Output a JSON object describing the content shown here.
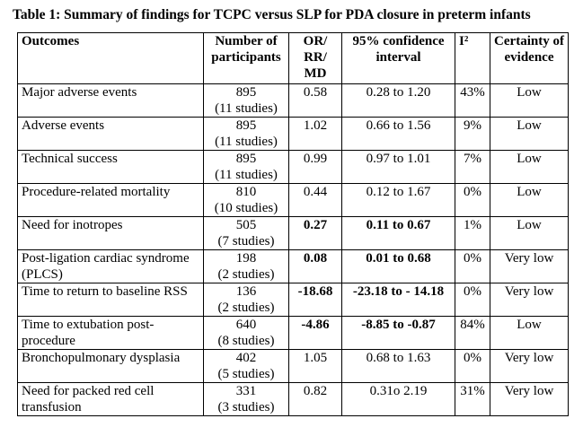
{
  "caption": "Table 1: Summary of findings for TCPC versus SLP for PDA closure in preterm infants",
  "headers": {
    "outcomes": "Outcomes",
    "participants": "Number of participants",
    "effect": "OR/ RR/ MD",
    "ci": "95% confidence interval",
    "i2": "I²",
    "certainty": "Certainty of evidence"
  },
  "rows": [
    {
      "outcome": "Major adverse events",
      "n": "895",
      "studies": "(11 studies)",
      "effect": "0.58",
      "ci": "0.28 to 1.20",
      "i2": "43%",
      "certainty": "Low"
    },
    {
      "outcome": "Adverse events",
      "n": "895",
      "studies": "(11 studies)",
      "effect": "1.02",
      "ci": "0.66 to 1.56",
      "i2": "9%",
      "certainty": "Low"
    },
    {
      "outcome": "Technical success",
      "n": "895",
      "studies": "(11 studies)",
      "effect": "0.99",
      "ci": "0.97 to 1.01",
      "i2": "7%",
      "certainty": "Low"
    },
    {
      "outcome": "Procedure-related mortality",
      "n": "810",
      "studies": "(10 studies)",
      "effect": "0.44",
      "ci": "0.12 to 1.67",
      "i2": "0%",
      "certainty": "Low"
    },
    {
      "outcome": "Need for inotropes",
      "n": "505",
      "studies": "(7 studies)",
      "effect": "0.27",
      "ci": "0.11 to 0.67",
      "i2": "1%",
      "certainty": "Low"
    },
    {
      "outcome": "Post-ligation cardiac syndrome (PLCS)",
      "n": "198",
      "studies": "(2 studies)",
      "effect": "0.08",
      "ci": "0.01 to 0.68",
      "i2": "0%",
      "certainty": "Very low"
    },
    {
      "outcome": "Time to return to baseline RSS",
      "n": "136",
      "studies": "(2 studies)",
      "effect": "-18.68",
      "ci": "-23.18 to - 14.18",
      "i2": "0%",
      "certainty": "Very low"
    },
    {
      "outcome": "Time to extubation post-procedure",
      "n": "640",
      "studies": "(8 studies)",
      "effect": "-4.86",
      "ci": "-8.85 to -0.87",
      "i2": "84%",
      "certainty": "Low"
    },
    {
      "outcome": "Bronchopulmonary dysplasia",
      "n": "402",
      "studies": "(5 studies)",
      "effect": "1.05",
      "ci": "0.68 to 1.63",
      "i2": "0%",
      "certainty": "Very low"
    },
    {
      "outcome": "Need for packed red cell transfusion",
      "n": "331",
      "studies": "(3 studies)",
      "effect": "0.82",
      "ci": "0.31o 2.19",
      "i2": "31%",
      "certainty": "Very low"
    }
  ]
}
